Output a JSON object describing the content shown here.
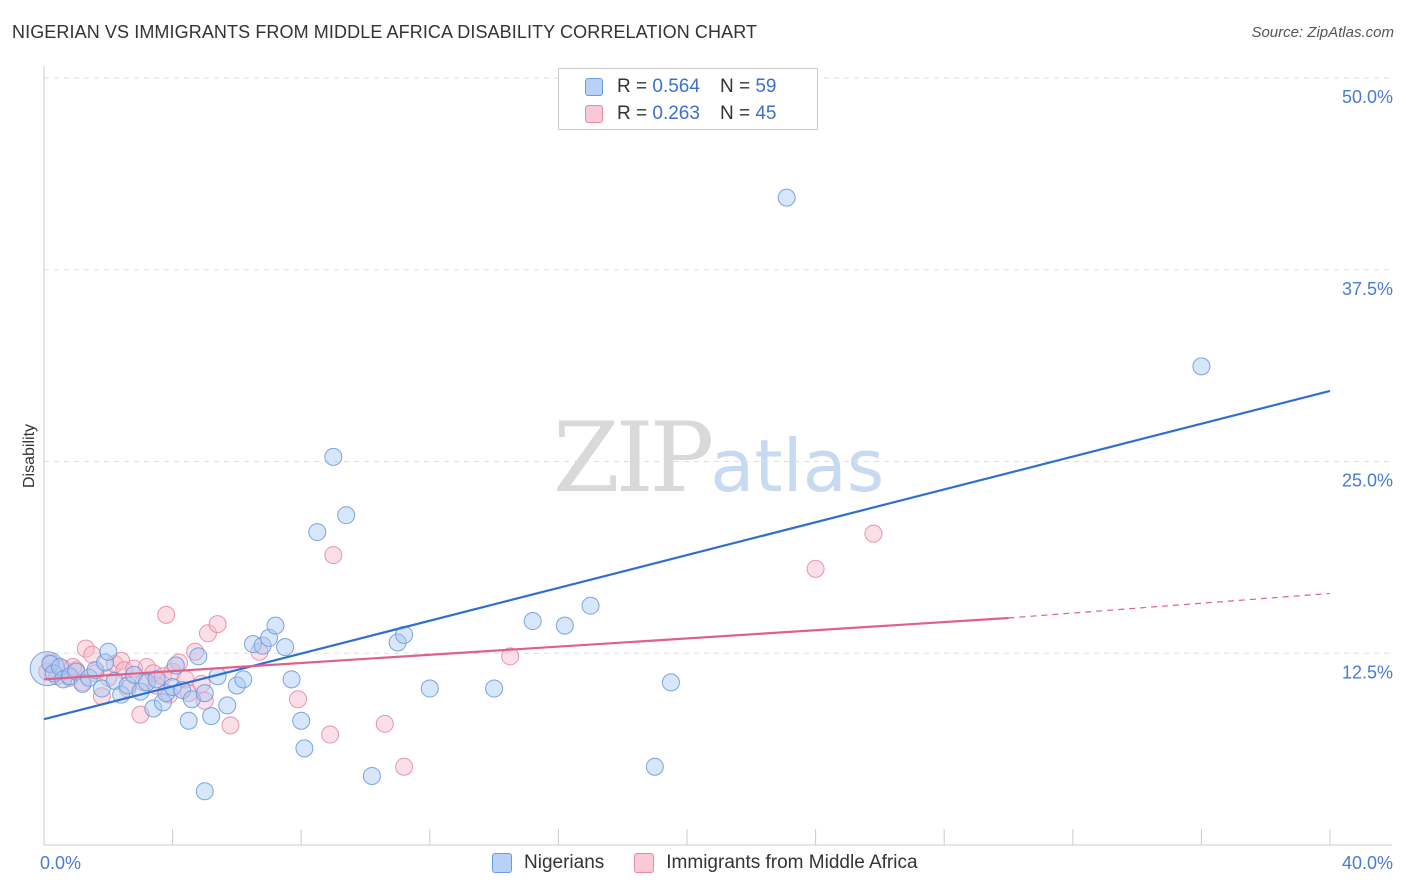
{
  "title": "NIGERIAN VS IMMIGRANTS FROM MIDDLE AFRICA DISABILITY CORRELATION CHART",
  "source": "Source: ZipAtlas.com",
  "watermark": {
    "zip": "ZIP",
    "atlas": "atlas"
  },
  "legend": {
    "series1": {
      "r_label": "R =",
      "r_value": "0.564",
      "n_label": "N =",
      "n_value": "59"
    },
    "series2": {
      "r_label": "R =",
      "r_value": "0.263",
      "n_label": "N =",
      "n_value": "45"
    }
  },
  "colors": {
    "blue_fill": "#a9c8f2",
    "blue_stroke": "#6b9be0",
    "blue_line": "#2f6fd0",
    "pink_fill": "#f6b8c9",
    "pink_stroke": "#e88aa6",
    "pink_line": "#e0608a",
    "grid": "#dddddd",
    "axis_text": "#4a7bd0"
  },
  "chart_data": {
    "type": "scatter",
    "title": "NIGERIAN VS IMMIGRANTS FROM MIDDLE AFRICA DISABILITY CORRELATION CHART",
    "xlabel": "",
    "ylabel": "Disability",
    "xlim": [
      0,
      40
    ],
    "ylim": [
      0,
      50
    ],
    "x_tick_labels": [
      "0.0%",
      "40.0%"
    ],
    "y_ticks": [
      12.5,
      25.0,
      37.5,
      50.0
    ],
    "y_tick_labels": [
      "12.5%",
      "25.0%",
      "37.5%",
      "50.0%"
    ],
    "legend_position": "top-center",
    "series": [
      {
        "name": "Nigerians",
        "color": "blue",
        "trend": {
          "x": [
            0,
            40
          ],
          "y": [
            8.2,
            29.6
          ]
        },
        "points": [
          [
            0.1,
            11.5
          ],
          [
            0.2,
            11.8
          ],
          [
            0.3,
            11.2
          ],
          [
            0.5,
            11.6
          ],
          [
            0.6,
            10.8
          ],
          [
            0.8,
            11.0
          ],
          [
            1.0,
            11.3
          ],
          [
            1.2,
            10.5
          ],
          [
            1.4,
            10.9
          ],
          [
            1.6,
            11.4
          ],
          [
            1.8,
            10.2
          ],
          [
            1.9,
            11.9
          ],
          [
            2.0,
            12.6
          ],
          [
            2.2,
            10.7
          ],
          [
            2.4,
            9.8
          ],
          [
            2.6,
            10.4
          ],
          [
            2.8,
            11.1
          ],
          [
            3.0,
            10.0
          ],
          [
            3.2,
            10.6
          ],
          [
            3.4,
            8.9
          ],
          [
            3.5,
            10.8
          ],
          [
            3.7,
            9.3
          ],
          [
            3.8,
            9.9
          ],
          [
            4.0,
            10.3
          ],
          [
            4.1,
            11.7
          ],
          [
            4.3,
            10.1
          ],
          [
            4.5,
            8.1
          ],
          [
            4.6,
            9.5
          ],
          [
            4.8,
            12.3
          ],
          [
            5.0,
            9.9
          ],
          [
            5.2,
            8.4
          ],
          [
            5.4,
            11.0
          ],
          [
            5.7,
            9.1
          ],
          [
            6.0,
            10.4
          ],
          [
            6.2,
            10.8
          ],
          [
            6.5,
            13.1
          ],
          [
            6.8,
            13.0
          ],
          [
            7.0,
            13.5
          ],
          [
            7.2,
            14.3
          ],
          [
            7.5,
            12.9
          ],
          [
            7.7,
            10.8
          ],
          [
            8.0,
            8.1
          ],
          [
            8.1,
            6.3
          ],
          [
            8.5,
            20.4
          ],
          [
            9.0,
            25.3
          ],
          [
            9.4,
            21.5
          ],
          [
            10.2,
            4.5
          ],
          [
            11.0,
            13.2
          ],
          [
            11.2,
            13.7
          ],
          [
            12.0,
            10.2
          ],
          [
            14.0,
            10.2
          ],
          [
            15.2,
            14.6
          ],
          [
            16.2,
            14.3
          ],
          [
            17.0,
            15.6
          ],
          [
            19.0,
            5.1
          ],
          [
            19.5,
            10.6
          ],
          [
            23.1,
            42.2
          ],
          [
            36.0,
            31.2
          ],
          [
            5.0,
            3.5
          ]
        ]
      },
      {
        "name": "Immigrants from Middle Africa",
        "color": "pink",
        "trend": {
          "x": [
            0,
            30
          ],
          "y": [
            10.8,
            14.8
          ]
        },
        "trend_dashed": {
          "x": [
            30,
            40
          ],
          "y": [
            14.8,
            16.4
          ]
        },
        "points": [
          [
            0.1,
            11.3
          ],
          [
            0.2,
            11.9
          ],
          [
            0.4,
            11.0
          ],
          [
            0.6,
            11.5
          ],
          [
            0.8,
            10.9
          ],
          [
            1.0,
            11.4
          ],
          [
            1.2,
            10.6
          ],
          [
            1.3,
            12.8
          ],
          [
            1.5,
            12.4
          ],
          [
            1.6,
            11.2
          ],
          [
            1.8,
            9.7
          ],
          [
            2.0,
            10.9
          ],
          [
            2.2,
            11.8
          ],
          [
            2.4,
            12.0
          ],
          [
            2.5,
            11.4
          ],
          [
            2.6,
            10.2
          ],
          [
            2.8,
            11.5
          ],
          [
            3.0,
            8.5
          ],
          [
            3.1,
            10.6
          ],
          [
            3.2,
            11.6
          ],
          [
            3.4,
            11.2
          ],
          [
            3.5,
            10.4
          ],
          [
            3.7,
            11.0
          ],
          [
            3.9,
            9.8
          ],
          [
            4.0,
            11.3
          ],
          [
            4.2,
            11.9
          ],
          [
            4.4,
            10.8
          ],
          [
            4.5,
            9.9
          ],
          [
            4.7,
            12.6
          ],
          [
            4.9,
            10.5
          ],
          [
            5.0,
            9.4
          ],
          [
            5.1,
            13.8
          ],
          [
            5.4,
            14.4
          ],
          [
            5.8,
            7.8
          ],
          [
            6.7,
            12.6
          ],
          [
            7.9,
            9.5
          ],
          [
            8.9,
            7.2
          ],
          [
            9.0,
            18.9
          ],
          [
            10.6,
            7.9
          ],
          [
            11.2,
            5.1
          ],
          [
            14.5,
            12.3
          ],
          [
            24.0,
            18.0
          ],
          [
            25.8,
            20.3
          ],
          [
            3.8,
            15.0
          ],
          [
            0.9,
            11.6
          ]
        ]
      }
    ]
  }
}
